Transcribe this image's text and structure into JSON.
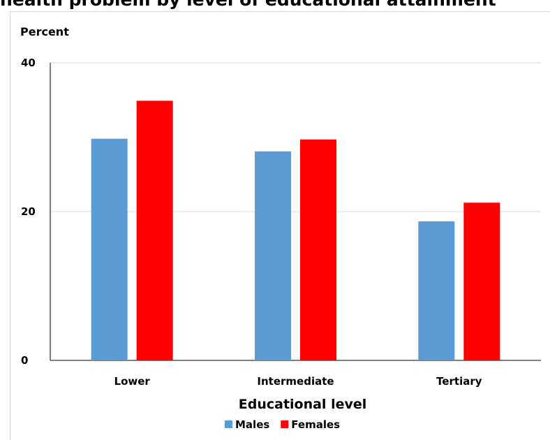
{
  "title": "health problem by level of educational attainment",
  "chart_data": {
    "type": "bar",
    "title": "health problem by level of educational attainment",
    "ylabel": "Percent",
    "xlabel": "Educational level",
    "categories": [
      "Lower",
      "Intermediate",
      "Tertiary"
    ],
    "series": [
      {
        "name": "Males",
        "color": "#5b9bd5",
        "values": [
          29.8,
          28.1,
          18.7
        ]
      },
      {
        "name": "Females",
        "color": "#ff0000",
        "values": [
          34.9,
          29.7,
          21.2
        ]
      }
    ],
    "ylim": [
      0,
      40
    ],
    "yticks": [
      0,
      20,
      40
    ],
    "grid": true,
    "legend": "bottom"
  }
}
